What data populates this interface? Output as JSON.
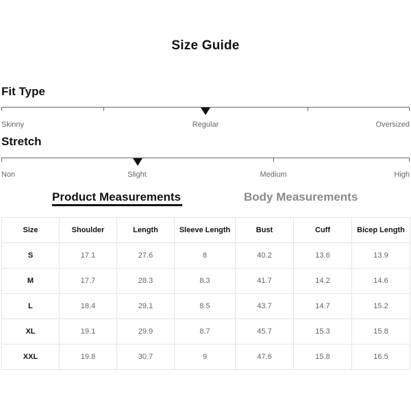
{
  "title": "Size Guide",
  "fit_type": {
    "heading": "Fit Type",
    "labels": [
      "Skinny",
      "Regular",
      "Oversized"
    ],
    "selected": "Regular"
  },
  "stretch": {
    "heading": "Stretch",
    "labels": [
      "Non",
      "Slight",
      "Medium",
      "High"
    ],
    "selected": "Slight"
  },
  "tabs": {
    "product": "Product Measurements",
    "body": "Body Measurements",
    "active": "Product Measurements"
  },
  "table": {
    "headers": [
      "Size",
      "Shoulder",
      "Length",
      "Sleeve Length",
      "Bust",
      "Cuff",
      "Bicep Length"
    ],
    "rows": [
      [
        "S",
        "17.1",
        "27.6",
        "8",
        "40.2",
        "13.6",
        "13.9"
      ],
      [
        "M",
        "17.7",
        "28.3",
        "8.3",
        "41.7",
        "14.2",
        "14.6"
      ],
      [
        "L",
        "18.4",
        "29.1",
        "8.5",
        "43.7",
        "14.7",
        "15.2"
      ],
      [
        "XL",
        "19.1",
        "29.9",
        "8.7",
        "45.7",
        "15.3",
        "15.8"
      ],
      [
        "XXL",
        "19.8",
        "30.7",
        "9",
        "47.6",
        "15.8",
        "16.5"
      ]
    ]
  }
}
